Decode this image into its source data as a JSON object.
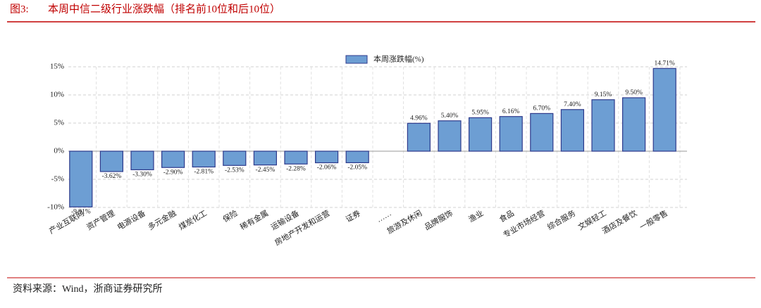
{
  "header": {
    "figure_label": "图3:",
    "title": "本周中信二级行业涨跌幅（排名前10位和后10位）"
  },
  "chart_data": {
    "type": "bar",
    "categories": [
      "产业互联网",
      "资产管理",
      "电源设备",
      "多元金融",
      "煤炭化工",
      "保险",
      "稀有金属",
      "运输设备",
      "房地产开发和运营",
      "证券",
      "……",
      "旅游及休闲",
      "品牌服饰",
      "渔业",
      "食品",
      "专业市场经营",
      "综合服务",
      "文娱轻工",
      "酒店及餐饮",
      "一般零售"
    ],
    "series": [
      {
        "name": "本周涨跌幅(%)",
        "color": "#6d9ed3",
        "values": [
          -9.91,
          -3.62,
          -3.3,
          -2.9,
          -2.81,
          -2.53,
          -2.45,
          -2.28,
          -2.06,
          -2.05,
          null,
          4.96,
          5.4,
          5.95,
          6.16,
          6.7,
          7.4,
          9.15,
          9.5,
          14.71
        ],
        "value_labels": [
          "-9.91%",
          "-3.62%",
          "-3.30%",
          "-2.90%",
          "-2.81%",
          "-2.53%",
          "-2.45%",
          "-2.28%",
          "-2.06%",
          "-2.05%",
          null,
          "4.96%",
          "5.40%",
          "5.95%",
          "6.16%",
          "6.70%",
          "7.40%",
          "9.15%",
          "9.50%",
          "14.71%"
        ]
      }
    ],
    "ylim": [
      -10,
      15
    ],
    "yticks": [
      {
        "value": -10,
        "label": "-10%"
      },
      {
        "value": -5,
        "label": "-5%"
      },
      {
        "value": 0,
        "label": "0%"
      },
      {
        "value": 5,
        "label": "5%"
      },
      {
        "value": 10,
        "label": "10%"
      },
      {
        "value": 15,
        "label": "15%"
      }
    ],
    "grid": true
  },
  "footer": {
    "source": "资料来源：Wind，浙商证券研究所"
  }
}
